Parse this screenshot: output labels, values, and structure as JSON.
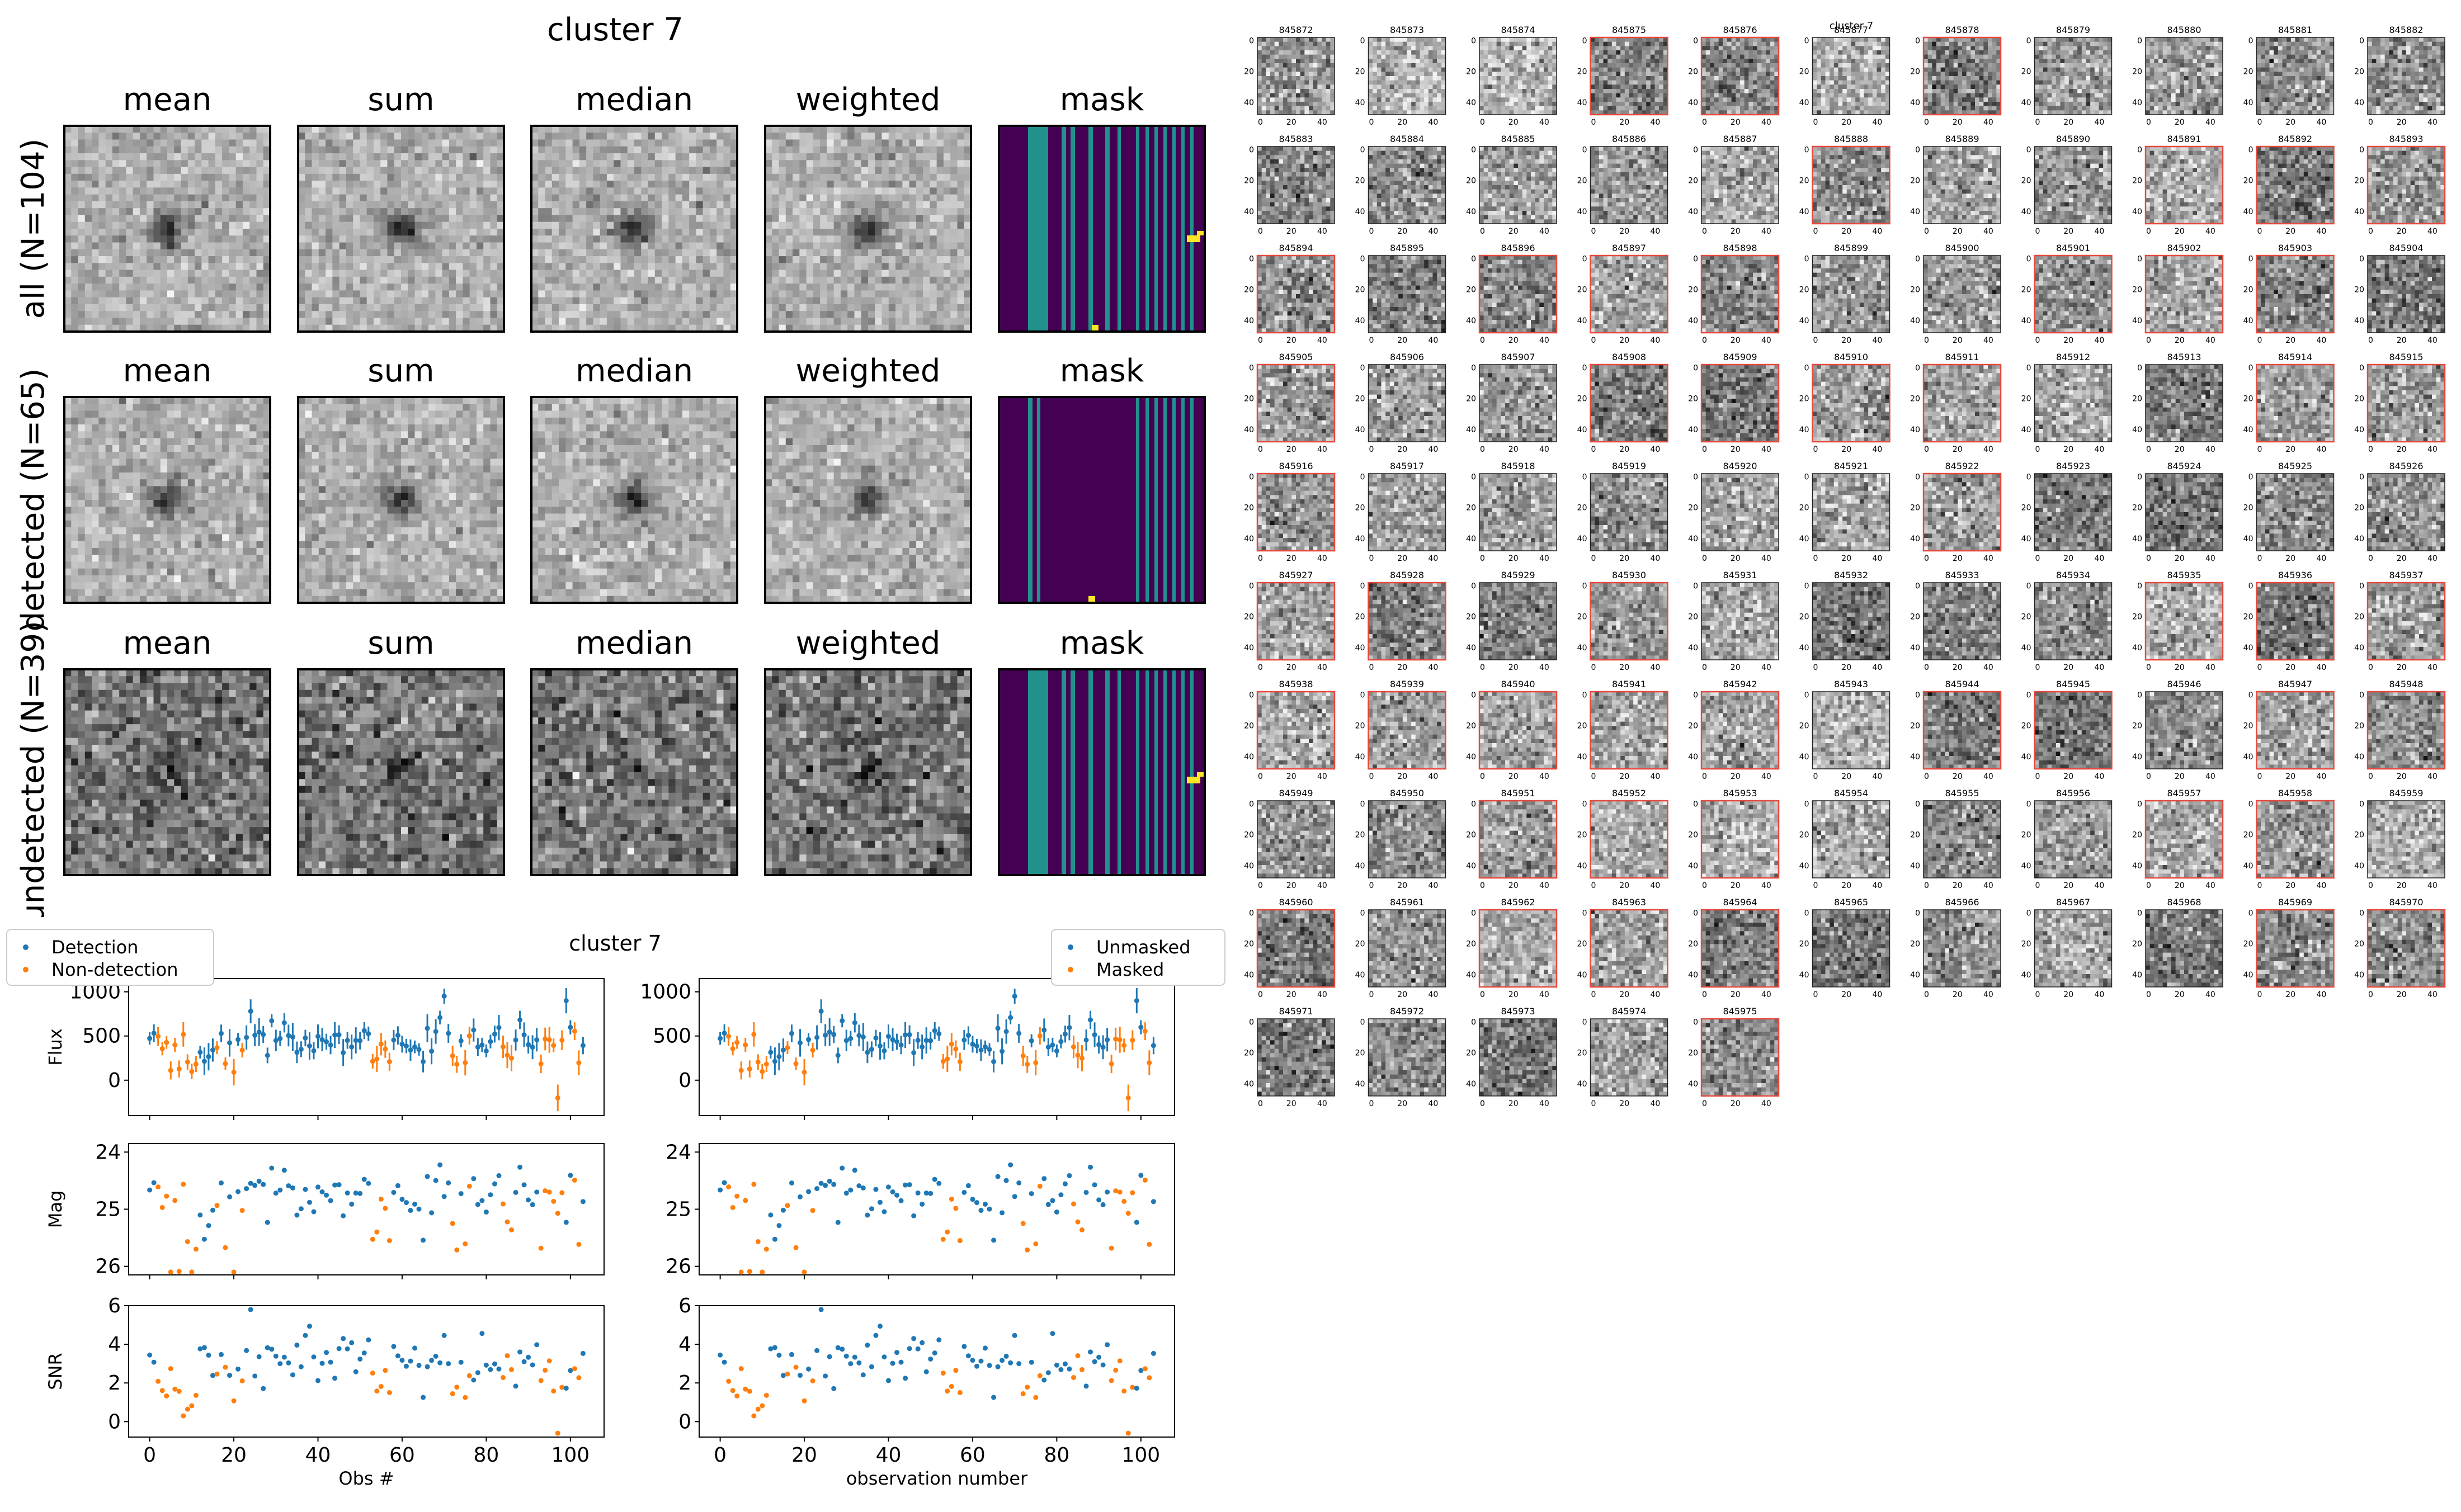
{
  "stamp_grid": {
    "title": "cluster 7",
    "columns": [
      "mean",
      "sum",
      "median",
      "weighted",
      "mask"
    ],
    "rows": [
      {
        "label": "all (N=104)",
        "contrast": 1.0,
        "source_strength": 1.0
      },
      {
        "label": "detected (N=65)",
        "contrast": 1.0,
        "source_strength": 1.0
      },
      {
        "label": "undetected (N=39)",
        "contrast": 1.6,
        "source_strength": 0.45
      }
    ],
    "mask_colors": {
      "background": "#440154",
      "masked": "#21918c",
      "flag": "#fde725"
    }
  },
  "lightcurve": {
    "title": "cluster 7",
    "left_xlabel": "Obs #",
    "right_xlabel": "observation number",
    "left_legend": [
      "Detection",
      "Non-detection"
    ],
    "right_legend": [
      "Unmasked",
      "Masked"
    ],
    "colors": {
      "blue": "#1f77b4",
      "orange": "#ff7f0e"
    },
    "panels": [
      {
        "ylabel": "Flux",
        "ylim": [
          -400,
          1150
        ],
        "yticks": [
          0,
          500,
          1000
        ],
        "inverted": false
      },
      {
        "ylabel": "Mag",
        "ylim": [
          23.85,
          26.15
        ],
        "yticks": [
          24,
          25,
          26
        ],
        "inverted": true
      },
      {
        "ylabel": "SNR",
        "ylim": [
          -0.8,
          6.0
        ],
        "yticks": [
          0,
          2,
          4,
          6
        ],
        "inverted": false
      }
    ],
    "xticks": [
      0,
      20,
      40,
      60,
      80,
      100
    ],
    "xlim": [
      -5,
      108
    ]
  },
  "chart_data": [
    {
      "type": "scatter",
      "title": "cluster 7",
      "xlabel": "Obs #",
      "x": "observation index 0–103",
      "series": [
        {
          "name": "Detection",
          "color": "#1f77b4",
          "flux_summary": "≈250–1000, mostly 350–600",
          "snr_summary": "≈2–5.8"
        },
        {
          "name": "Non-detection",
          "color": "#ff7f0e",
          "flux_summary": "≈-300–950, mostly 100–500",
          "snr_summary": "≈-0.6–3.5"
        }
      ],
      "yaxes": {
        "Flux": [
          -400,
          1150
        ],
        "Mag": [
          26.15,
          23.85
        ],
        "SNR": [
          -0.8,
          6.0
        ]
      }
    },
    {
      "type": "scatter",
      "title": "",
      "xlabel": "observation number",
      "series": [
        {
          "name": "Unmasked",
          "color": "#1f77b4"
        },
        {
          "name": "Masked",
          "color": "#ff7f0e"
        }
      ]
    },
    {
      "type": "heatmap",
      "title": "cluster 7",
      "panel_ids": [
        "845872",
        "845873",
        "845874",
        "845875",
        "845876",
        "845877",
        "845878",
        "845879",
        "845880",
        "845881",
        "845882",
        "845883",
        "845884",
        "845885",
        "845886",
        "845887",
        "845888",
        "845889",
        "845890",
        "845891",
        "845892",
        "845893",
        "845894",
        "845895",
        "845896",
        "845897",
        "845898",
        "845899",
        "845900",
        "845901",
        "845902",
        "845903",
        "845904",
        "845905",
        "845906",
        "845907",
        "845908",
        "845909",
        "845910",
        "845911",
        "845912",
        "845913",
        "845914",
        "845915",
        "845916",
        "845917",
        "845918",
        "845919",
        "845920",
        "845921",
        "845922",
        "845923",
        "845924",
        "845925",
        "845926",
        "845927",
        "845928",
        "845929",
        "845930",
        "845931",
        "845932",
        "845933",
        "845934",
        "845935",
        "845936",
        "845937",
        "845938",
        "845939",
        "845940",
        "845941",
        "845942",
        "845943",
        "845944",
        "845945",
        "845946",
        "845947",
        "845948",
        "845949",
        "845950",
        "845951",
        "845952",
        "845953",
        "845954",
        "845955",
        "845956",
        "845957",
        "845958",
        "845959",
        "845960",
        "845961",
        "845962",
        "845963",
        "845964",
        "845965",
        "845966",
        "845967",
        "845968",
        "845969",
        "845970",
        "845971",
        "845972",
        "845973",
        "845974",
        "845975"
      ],
      "masked_ids": [
        "845875",
        "845876",
        "845878",
        "845888",
        "845891",
        "845892",
        "845893",
        "845894",
        "845896",
        "845897",
        "845898",
        "845901",
        "845902",
        "845903",
        "845905",
        "845908",
        "845909",
        "845910",
        "845911",
        "845914",
        "845915",
        "845916",
        "845922",
        "845927",
        "845928",
        "845930",
        "845935",
        "845936",
        "845937",
        "845938",
        "845939",
        "845940",
        "845941",
        "845942",
        "845944",
        "845945",
        "845947",
        "845948",
        "845951",
        "845952",
        "845953",
        "845957",
        "845958",
        "845960",
        "845962",
        "845963",
        "845964",
        "845969",
        "845970",
        "845975"
      ],
      "axis_ticks": [
        0,
        20,
        40
      ]
    }
  ]
}
